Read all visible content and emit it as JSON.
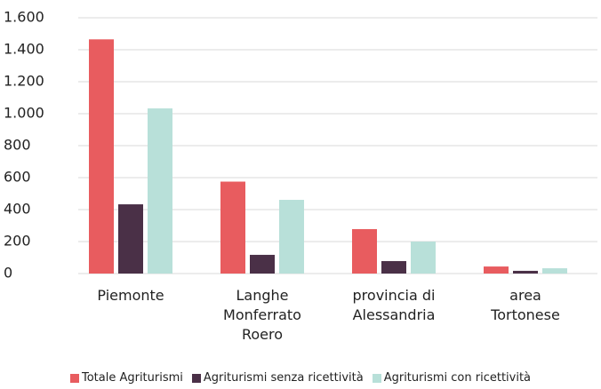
{
  "chart_data": {
    "type": "bar",
    "categories": [
      "Piemonte",
      "Langhe Monferrato Roero",
      "provincia di Alessandria",
      "area Tortonese"
    ],
    "series": [
      {
        "name": "Totale Agriturismi",
        "color": "#e85c5f",
        "values": [
          1465,
          575,
          278,
          44
        ]
      },
      {
        "name": "Agriturismi senza ricettività",
        "color": "#4a3047",
        "values": [
          433,
          117,
          78,
          17
        ]
      },
      {
        "name": "Agriturismi con ricettività",
        "color": "#b8e0d9",
        "values": [
          1033,
          461,
          200,
          33
        ]
      }
    ],
    "ylim": [
      0,
      1600
    ],
    "yticks": [
      0,
      200,
      400,
      600,
      800,
      {
        "value": 1000,
        "label": "1.000"
      },
      {
        "value": 1200,
        "label": "1.200"
      },
      {
        "value": 1400,
        "label": "1.400"
      },
      {
        "value": 1600,
        "label": "1.600"
      }
    ],
    "grid": true,
    "legend": "bottom"
  }
}
